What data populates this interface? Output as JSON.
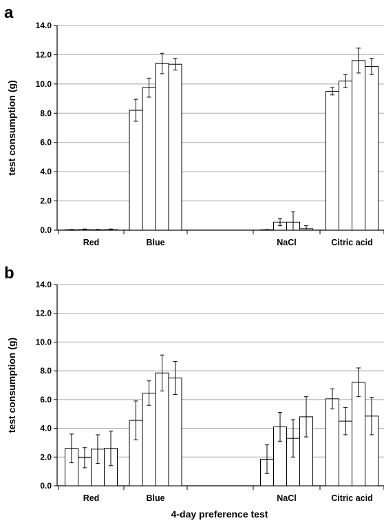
{
  "figure": {
    "xlabel": "4-day preference test"
  },
  "chart_data": [
    {
      "panel": "a",
      "type": "bar",
      "ylabel": "test consumption (g)",
      "ylim": [
        0,
        14
      ],
      "yticks": [
        "0.0",
        "2.0",
        "4.0",
        "6.0",
        "8.0",
        "10.0",
        "12.0",
        "14.0"
      ],
      "grid": true,
      "categories": [
        "Red",
        "Blue",
        "",
        "NaCl",
        "Citric acid"
      ],
      "groups": [
        {
          "category": "Red",
          "values": [
            0.02,
            0.03,
            0.02,
            0.03
          ],
          "errors": [
            0.03,
            0.05,
            0.03,
            0.05
          ]
        },
        {
          "category": "Blue",
          "values": [
            8.2,
            9.75,
            11.4,
            11.35
          ],
          "errors": [
            0.75,
            0.65,
            0.7,
            0.4
          ]
        },
        {
          "category": "",
          "values": [],
          "errors": []
        },
        {
          "category": "NaCl",
          "values": [
            0.02,
            0.55,
            0.55,
            0.1
          ],
          "errors": [
            0.02,
            0.25,
            0.7,
            0.2
          ]
        },
        {
          "category": "Citric acid",
          "values": [
            9.5,
            10.2,
            11.6,
            11.2
          ],
          "errors": [
            0.25,
            0.45,
            0.85,
            0.55
          ]
        }
      ]
    },
    {
      "panel": "b",
      "type": "bar",
      "ylabel": "test consumption (g)",
      "ylim": [
        0,
        14
      ],
      "yticks": [
        "0.0",
        "2.0",
        "4.0",
        "6.0",
        "8.0",
        "10.0",
        "12.0",
        "14.0"
      ],
      "grid": true,
      "categories": [
        "Red",
        "Blue",
        "",
        "NaCl",
        "Citric acid"
      ],
      "groups": [
        {
          "category": "Red",
          "values": [
            2.6,
            1.95,
            2.55,
            2.6
          ],
          "errors": [
            1.0,
            0.7,
            1.0,
            1.2
          ]
        },
        {
          "category": "Blue",
          "values": [
            4.55,
            6.45,
            7.85,
            7.5
          ],
          "errors": [
            1.35,
            0.85,
            1.25,
            1.15
          ]
        },
        {
          "category": "",
          "values": [],
          "errors": []
        },
        {
          "category": "NaCl",
          "values": [
            1.85,
            4.1,
            3.3,
            4.8
          ],
          "errors": [
            1.0,
            1.0,
            1.3,
            1.4
          ]
        },
        {
          "category": "Citric acid",
          "values": [
            6.05,
            4.5,
            7.2,
            4.85
          ],
          "errors": [
            0.7,
            0.95,
            1.0,
            1.3
          ]
        }
      ]
    }
  ]
}
